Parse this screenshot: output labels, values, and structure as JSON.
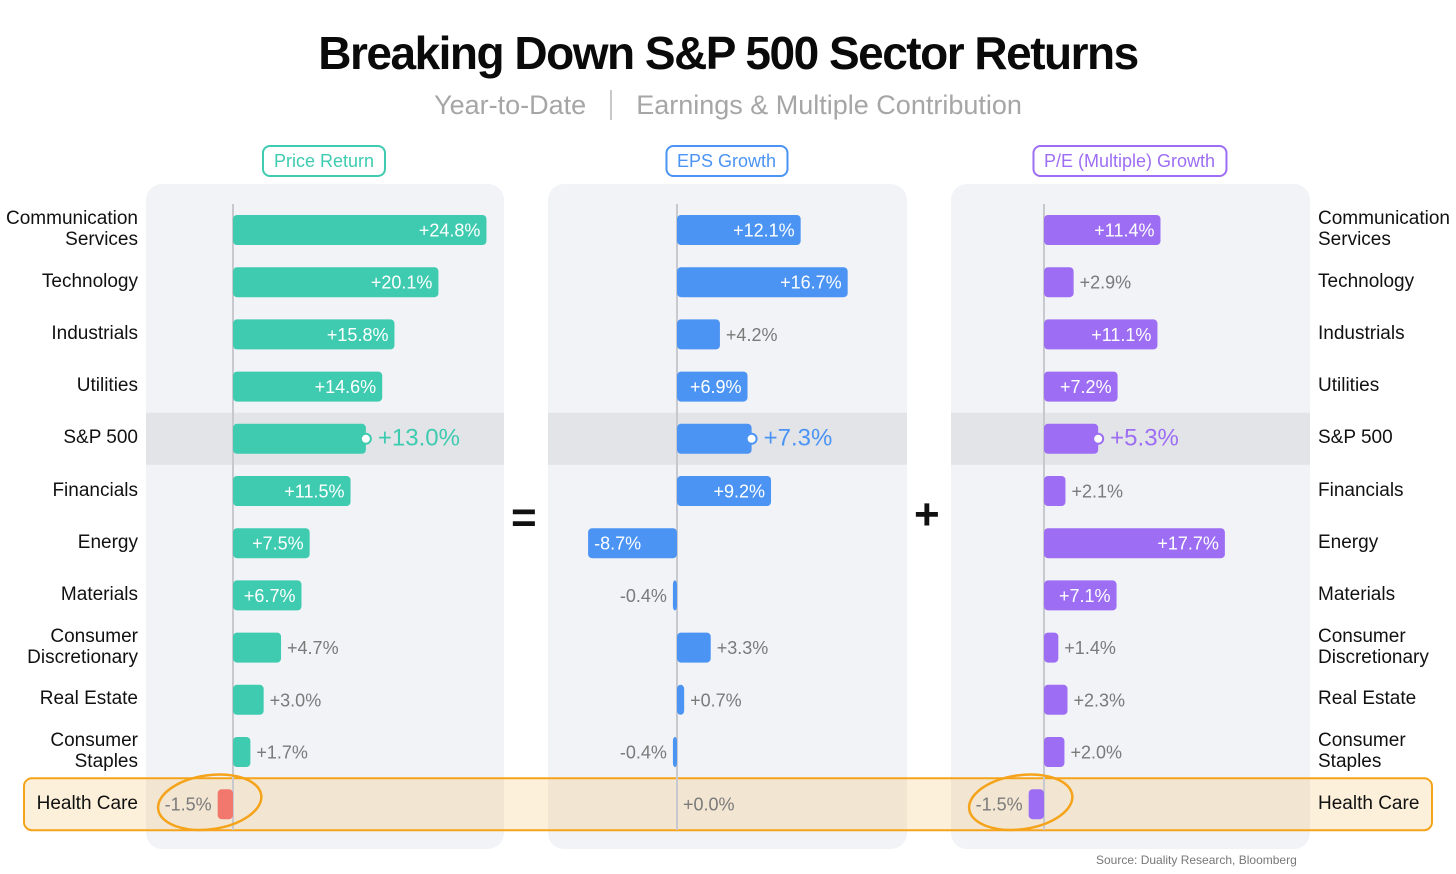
{
  "title": "Breaking Down S&P 500 Sector Returns",
  "subtitle": {
    "left": "Year-to-Date",
    "right": "Earnings & Multiple Contribution"
  },
  "operators": {
    "equals": "=",
    "plus": "+"
  },
  "source": "Source: Duality Research, Bloomberg",
  "colors": {
    "price": "#3ecbb0",
    "eps": "#4b94f3",
    "pe": "#9d6ef3",
    "negative_price": "#f2786d",
    "highlight": "#f5a31a",
    "panel_bg": "#f2f3f7",
    "sp500_band": "#e3e4e8"
  },
  "chart_data": {
    "type": "bar",
    "orientation": "horizontal",
    "categories": [
      "Communication\nServices",
      "Technology",
      "Industrials",
      "Utilities",
      "S&P 500",
      "Financials",
      "Energy",
      "Materials",
      "Consumer\nDiscretionary",
      "Real Estate",
      "Consumer\nStaples",
      "Health Care"
    ],
    "highlighted_category": "Health Care",
    "benchmark_category": "S&P 500",
    "series": [
      {
        "name": "Price Return",
        "values": [
          24.8,
          20.1,
          15.8,
          14.6,
          13.0,
          11.5,
          7.5,
          6.7,
          4.7,
          3.0,
          1.7,
          -1.5
        ],
        "labels": [
          "+24.8%",
          "+20.1%",
          "+15.8%",
          "+14.6%",
          "+13.0%",
          "+11.5%",
          "+7.5%",
          "+6.7%",
          "+4.7%",
          "+3.0%",
          "+1.7%",
          "-1.5%"
        ]
      },
      {
        "name": "EPS Growth",
        "values": [
          12.1,
          16.7,
          4.2,
          6.9,
          7.3,
          9.2,
          -8.7,
          -0.4,
          3.3,
          0.7,
          -0.4,
          0.0
        ],
        "labels": [
          "+12.1%",
          "+16.7%",
          "+4.2%",
          "+6.9%",
          "+7.3%",
          "+9.2%",
          "-8.7%",
          "-0.4%",
          "+3.3%",
          "+0.7%",
          "-0.4%",
          "+0.0%"
        ]
      },
      {
        "name": "P/E (Multiple) Growth",
        "values": [
          11.4,
          2.9,
          11.1,
          7.2,
          5.3,
          2.1,
          17.7,
          7.1,
          1.4,
          2.3,
          2.0,
          -1.5
        ],
        "labels": [
          "+11.4%",
          "+2.9%",
          "+11.1%",
          "+7.2%",
          "+5.3%",
          "+2.1%",
          "+17.7%",
          "+7.1%",
          "+1.4%",
          "+2.3%",
          "+2.0%",
          "-1.5%"
        ]
      }
    ]
  }
}
